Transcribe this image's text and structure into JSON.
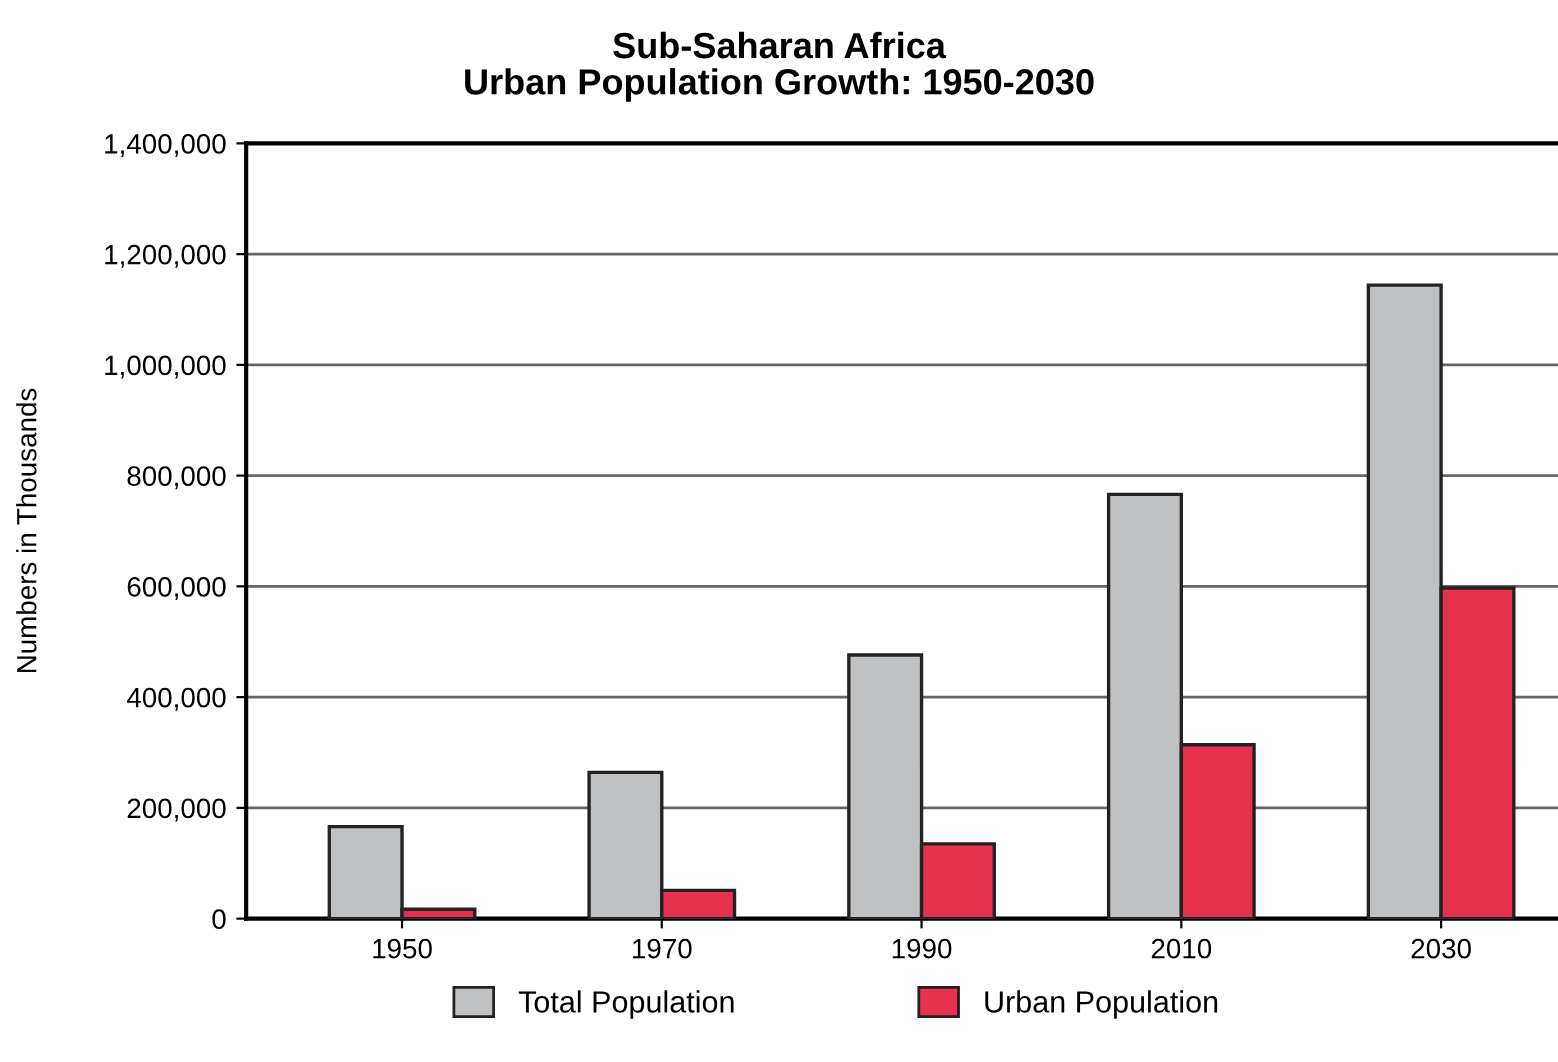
{
  "chart_data": {
    "type": "bar",
    "title": "Sub-Saharan Africa\nUrban Population Growth: 1950-2030",
    "ylabel": "Numbers in Thousands",
    "categories": [
      "1950",
      "1970",
      "1990",
      "2010",
      "2030"
    ],
    "series": [
      {
        "name": "Total Population",
        "color": "#bfc0c2",
        "values": [
          166000,
          264000,
          476000,
          766000,
          1144000
        ]
      },
      {
        "name": "Urban Population",
        "color": "#e8304f",
        "values": [
          17000,
          51000,
          135000,
          314000,
          597000
        ]
      }
    ],
    "ylim": [
      0,
      1400000
    ],
    "yticks": [
      {
        "value": 0,
        "label": "0"
      },
      {
        "value": 200000,
        "label": "200,000"
      },
      {
        "value": 400000,
        "label": "400,000"
      },
      {
        "value": 600000,
        "label": "600,000"
      },
      {
        "value": 800000,
        "label": "800,000"
      },
      {
        "value": 1000000,
        "label": "1,000,000"
      },
      {
        "value": 1200000,
        "label": "1,200,000"
      },
      {
        "value": 1400000,
        "label": "1,400,000"
      }
    ],
    "grid": "y",
    "legend": "bottom"
  }
}
